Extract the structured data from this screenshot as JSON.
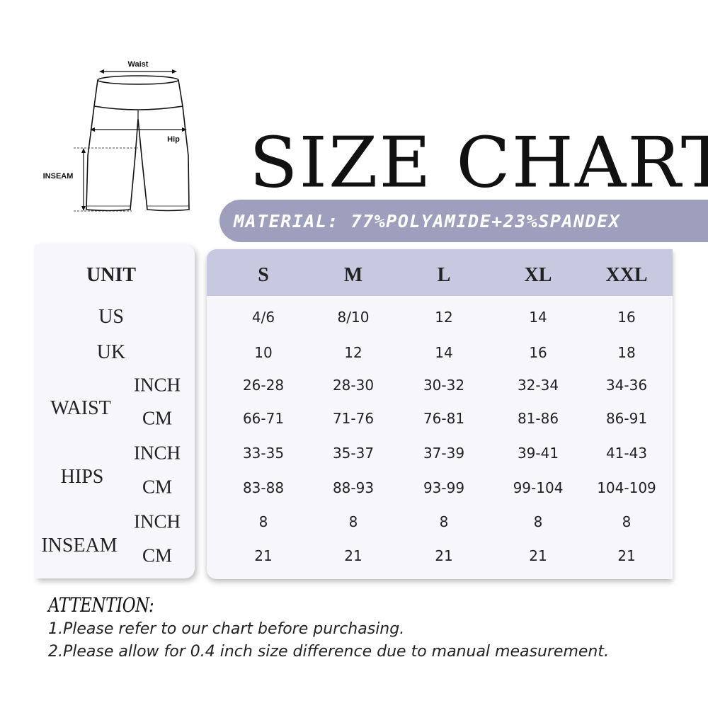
{
  "diagram": {
    "waist_label": "Waist",
    "hip_label": "Hip",
    "inseam_label": "INSEAM"
  },
  "title": "SIZE CHART",
  "material": "MATERIAL: 77%POLYAMIDE+23%SPANDEX",
  "table": {
    "unit_header": "UNIT",
    "sizes": [
      "S",
      "M",
      "L",
      "XL",
      "XXL"
    ],
    "rows": {
      "us": {
        "label": "US",
        "values": [
          "4/6",
          "8/10",
          "12",
          "14",
          "16"
        ]
      },
      "uk": {
        "label": "UK",
        "values": [
          "10",
          "12",
          "14",
          "16",
          "18"
        ]
      },
      "waist": {
        "label": "WAIST",
        "inch": {
          "unit": "INCH",
          "values": [
            "26-28",
            "28-30",
            "30-32",
            "32-34",
            "34-36"
          ]
        },
        "cm": {
          "unit": "CM",
          "values": [
            "66-71",
            "71-76",
            "76-81",
            "81-86",
            "86-91"
          ]
        }
      },
      "hips": {
        "label": "HIPS",
        "inch": {
          "unit": "INCH",
          "values": [
            "33-35",
            "35-37",
            "37-39",
            "39-41",
            "41-43"
          ]
        },
        "cm": {
          "unit": "CM",
          "values": [
            "83-88",
            "88-93",
            "93-99",
            "99-104",
            "104-109"
          ]
        }
      },
      "inseam": {
        "label": "INSEAM",
        "inch": {
          "unit": "INCH",
          "values": [
            "8",
            "8",
            "8",
            "8",
            "8"
          ]
        },
        "cm": {
          "unit": "CM",
          "values": [
            "21",
            "21",
            "21",
            "21",
            "21"
          ]
        }
      }
    }
  },
  "attention": {
    "heading": "ATTENTION:",
    "notes": [
      "1.Please refer to our chart before purchasing.",
      "2.Please allow for 0.4 inch size difference due to manual measurement."
    ]
  }
}
